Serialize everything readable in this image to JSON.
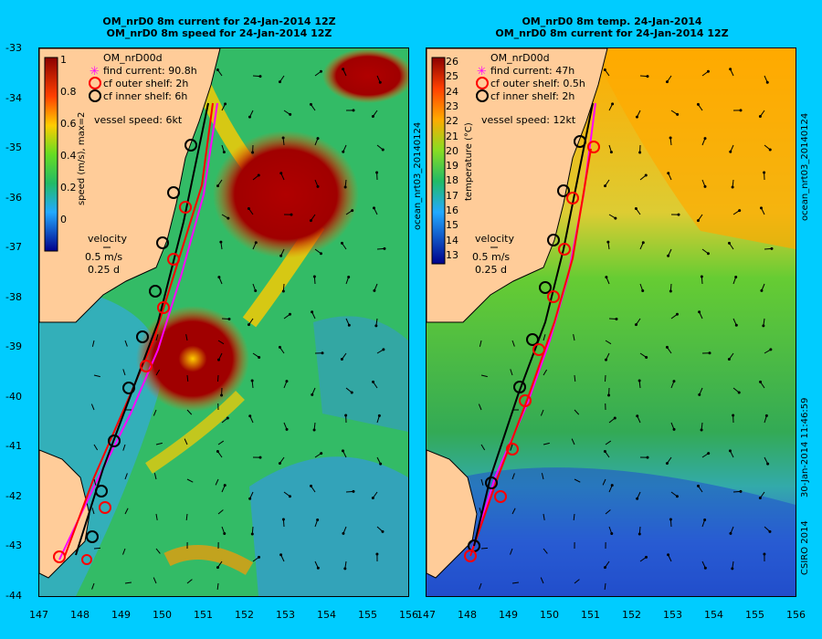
{
  "left": {
    "title1": "OM_nrD0 8m current for 24-Jan-2014 12Z",
    "title2": "OM_nrD0 8m speed for 24-Jan-2014 12Z",
    "colorbar_label": "speed (m/s),  max=2",
    "colorbar_ticks": [
      "1",
      "0.8",
      "0.6",
      "0.4",
      "0.2",
      "0"
    ],
    "legend_title": "OM_nrD00d",
    "legend_items": [
      "find current: 90.8h",
      "cf outer shelf: 2h",
      "cf inner shelf: 6h"
    ],
    "vessel_speed": "vessel speed: 6kt",
    "velocity_title": "velocity",
    "velocity_scale": [
      "0.5 m/s",
      "0.25 d"
    ]
  },
  "right": {
    "title1": "OM_nrD0 8m temp. 24-Jan-2014",
    "title2": "OM_nrD0 8m current for 24-Jan-2014 12Z",
    "colorbar_label": "temperature (°C)",
    "colorbar_ticks": [
      "26",
      "25",
      "24",
      "23",
      "22",
      "21",
      "20",
      "19",
      "18",
      "17",
      "16",
      "15",
      "14",
      "13"
    ],
    "legend_title": "OM_nrD00d",
    "legend_items": [
      "find current: 47h",
      "cf outer shelf: 0.5h",
      "cf inner shelf: 2h"
    ],
    "vessel_speed": "vessel speed: 12kt",
    "velocity_title": "velocity",
    "velocity_scale": [
      "0.5 m/s",
      "0.25 d"
    ]
  },
  "y_ticks": [
    "-33",
    "-34",
    "-35",
    "-36",
    "-37",
    "-38",
    "-39",
    "-40",
    "-41",
    "-42",
    "-43",
    "-44"
  ],
  "x_ticks": [
    "147",
    "148",
    "149",
    "150",
    "151",
    "152",
    "153",
    "154",
    "155",
    "156"
  ],
  "side_label_left_panel": "ocean_nrt03_20140124",
  "side_label_right_top": "ocean_nrt03_20140124",
  "side_label_right_bottom": "30-Jan-2014 11:46:59",
  "copyright": "CSIRO 2014",
  "colors": {
    "background": "#00ccff",
    "land": "#ffcc99",
    "find": "#ff00ff",
    "outer": "#ff0000",
    "inner": "#000000"
  }
}
